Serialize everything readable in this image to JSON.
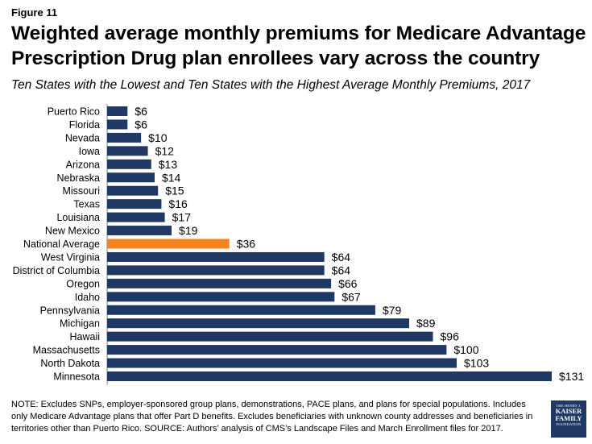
{
  "figure_label": "Figure 11",
  "title": "Weighted average monthly premiums for Medicare Advantage Prescription Drug plan enrollees vary across the country",
  "subtitle": "Ten States with the Lowest and Ten States with the Highest Average Monthly Premiums, 2017",
  "colors": {
    "bar": "#1f3864",
    "highlight": "#f5841f"
  },
  "chart_data": {
    "type": "bar",
    "orientation": "horizontal",
    "title": "Weighted average monthly premiums for Medicare Advantage Prescription Drug plan enrollees vary across the country",
    "subtitle": "Ten States with the Lowest and Ten States with the Highest Average Monthly Premiums, 2017",
    "categories": [
      "Puerto Rico",
      "Florida",
      "Nevada",
      "Iowa",
      "Arizona",
      "Nebraska",
      "Missouri",
      "Texas",
      "Louisiana",
      "New Mexico",
      "National Average",
      "West Virginia",
      "District of Columbia",
      "Oregon",
      "Idaho",
      "Pennsylvania",
      "Michigan",
      "Hawaii",
      "Massachusetts",
      "North Dakota",
      "Minnesota"
    ],
    "values": [
      6,
      6,
      10,
      12,
      13,
      14,
      15,
      16,
      17,
      19,
      36,
      64,
      64,
      66,
      67,
      79,
      89,
      96,
      100,
      103,
      131
    ],
    "value_labels": [
      "$6",
      "$6",
      "$10",
      "$12",
      "$13",
      "$14",
      "$15",
      "$16",
      "$17",
      "$19",
      "$36",
      "$64",
      "$64",
      "$66",
      "$67",
      "$79",
      "$89",
      "$96",
      "$100",
      "$103",
      "$131"
    ],
    "highlight_category": "National Average",
    "xlim": [
      0,
      131
    ],
    "grid": false,
    "legend": "none"
  },
  "note": "NOTE:  Excludes SNPs, employer-sponsored  group plans, demonstrations, PACE plans, and plans for special populations.  Includes only Medicare Advantage plans that offer Part D benefits. Excludes beneficiaries with unknown county addresses and beneficiaries in territories other than Puerto Rico.  SOURCE:  Authors’ analysis of CMS’s Landscape Files and March Enrollment files for 2017.",
  "logo": {
    "line1": "THE HENRY J.",
    "line2": "KAISER",
    "line3": "FAMILY",
    "line4": "FOUNDATION"
  }
}
